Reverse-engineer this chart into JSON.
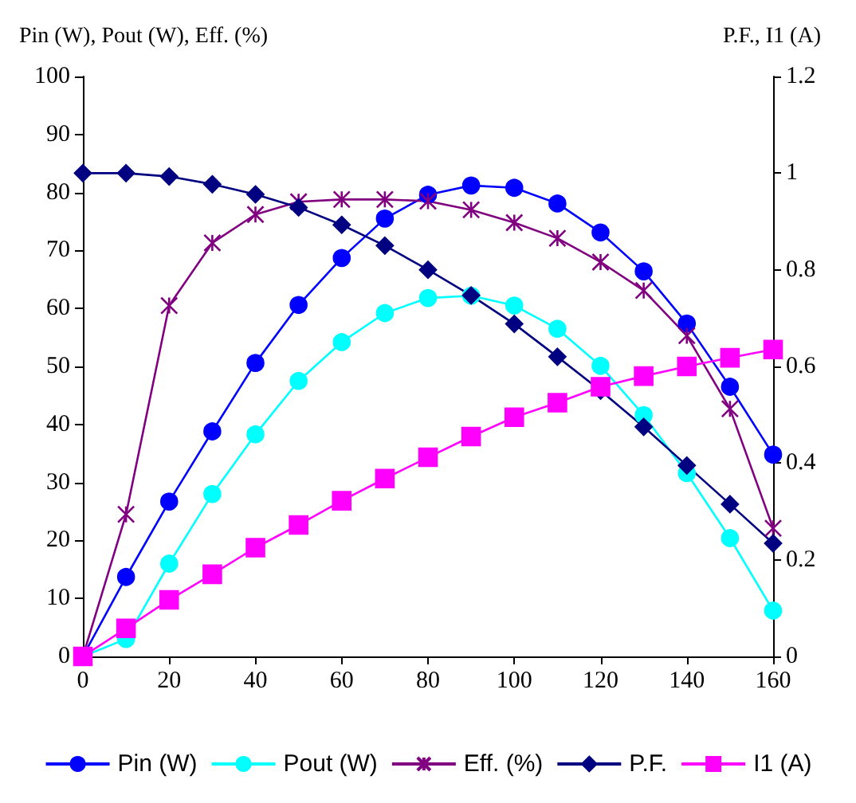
{
  "chart_data": {
    "type": "line",
    "ylabel": "Pin (W), Pout (W), Eff. (%)",
    "y2label": "P.F., I1 (A)",
    "x": [
      0,
      10,
      20,
      30,
      40,
      50,
      60,
      70,
      80,
      90,
      100,
      110,
      120,
      130,
      140,
      150,
      160
    ],
    "xlim": [
      0,
      160
    ],
    "xticks": [
      0,
      20,
      40,
      60,
      80,
      100,
      120,
      140,
      160
    ],
    "ylim": [
      0,
      100
    ],
    "yticks": [
      0,
      10,
      20,
      30,
      40,
      50,
      60,
      70,
      80,
      90,
      100
    ],
    "y2lim": [
      0,
      1.2
    ],
    "y2ticks": [
      0,
      0.2,
      0.4,
      0.6,
      0.8,
      1,
      1.2
    ],
    "grid": false,
    "legend": "bottom",
    "series": [
      {
        "name": "Pin (W)",
        "color": "#0000ff",
        "marker": "circle",
        "values": [
          0,
          13.7,
          26.7,
          38.8,
          50.6,
          60.6,
          68.7,
          75.5,
          79.6,
          81.2,
          80.8,
          78.1,
          73.1,
          66.4,
          57.4,
          46.5,
          34.8
        ]
      },
      {
        "name": "Pout (W)",
        "color": "#00ffff",
        "marker": "circle",
        "values": [
          0,
          3,
          16,
          28,
          38.3,
          47.5,
          54.2,
          59.2,
          61.8,
          62.2,
          60.5,
          56.5,
          50.1,
          41.6,
          31.6,
          20.4,
          7.9
        ]
      },
      {
        "name": "Eff. (%)",
        "color": "#800080",
        "marker": "cross",
        "values": [
          0,
          24.5,
          60.5,
          71.3,
          76.2,
          78.4,
          78.8,
          78.8,
          78.5,
          77,
          74.8,
          72.1,
          68,
          63.1,
          55.3,
          42.7,
          22.1
        ]
      },
      {
        "name": "P.F.",
        "color": "#000080",
        "marker": "diamond",
        "axis": "y2",
        "values": [
          1,
          1,
          0.993,
          0.977,
          0.956,
          0.929,
          0.893,
          0.85,
          0.8,
          0.747,
          0.688,
          0.62,
          0.55,
          0.475,
          0.395,
          0.315,
          0.234
        ]
      },
      {
        "name": "I1 (A)",
        "color": "#ff00ff",
        "marker": "square",
        "axis": "y2",
        "values": [
          0,
          0.058,
          0.117,
          0.17,
          0.225,
          0.272,
          0.322,
          0.368,
          0.412,
          0.455,
          0.495,
          0.525,
          0.558,
          0.58,
          0.6,
          0.618,
          0.635
        ]
      }
    ]
  }
}
